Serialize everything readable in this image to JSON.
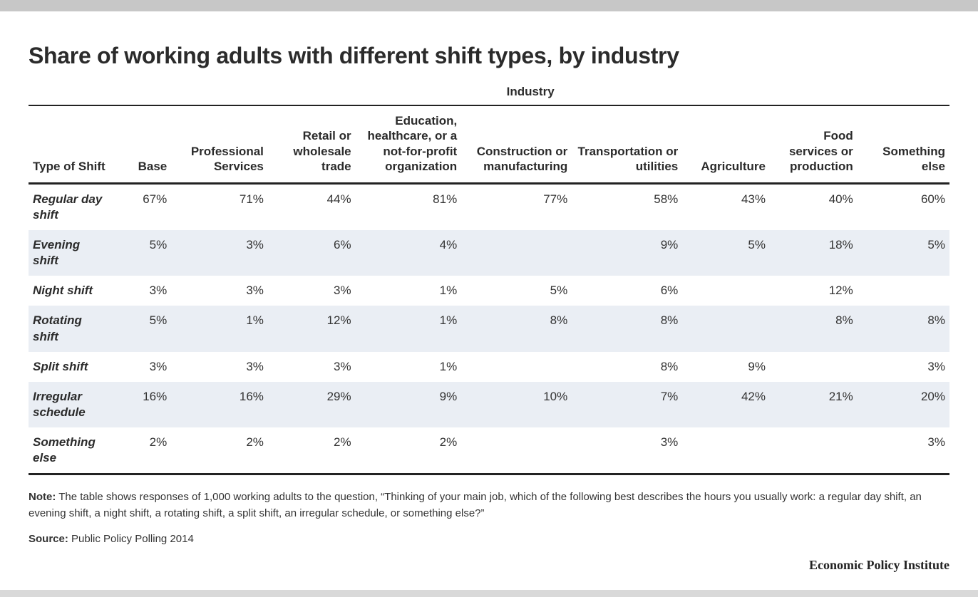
{
  "title": "Share of working adults with different shift types, by industry",
  "super_header": "Industry",
  "columns": [
    {
      "label": "Type of Shift",
      "width": "9%"
    },
    {
      "label": "Base",
      "width": "6.5%"
    },
    {
      "label": "Professional Services",
      "width": "10.5%"
    },
    {
      "label": "Retail or wholesale trade",
      "width": "9.5%"
    },
    {
      "label": "Education, healthcare, or a not-for-profit organization",
      "width": "11.5%"
    },
    {
      "label": "Construction or manufacturing",
      "width": "12%"
    },
    {
      "label": "Transportation or utilities",
      "width": "12%"
    },
    {
      "label": "Agriculture",
      "width": "9.5%"
    },
    {
      "label": "Food services or production",
      "width": "9.5%"
    },
    {
      "label": "Something else",
      "width": "10%"
    }
  ],
  "rows": [
    {
      "label": "Regular day shift",
      "cells": [
        "67%",
        "71%",
        "44%",
        "81%",
        "77%",
        "58%",
        "43%",
        "40%",
        "60%"
      ]
    },
    {
      "label": "Evening shift",
      "cells": [
        "5%",
        "3%",
        "6%",
        "4%",
        "",
        "9%",
        "5%",
        "18%",
        "5%"
      ]
    },
    {
      "label": "Night shift",
      "cells": [
        "3%",
        "3%",
        "3%",
        "1%",
        "5%",
        "6%",
        "",
        "12%",
        ""
      ]
    },
    {
      "label": "Rotating shift",
      "cells": [
        "5%",
        "1%",
        "12%",
        "1%",
        "8%",
        "8%",
        "",
        "8%",
        "8%"
      ]
    },
    {
      "label": "Split shift",
      "cells": [
        "3%",
        "3%",
        "3%",
        "1%",
        "",
        "8%",
        "9%",
        "",
        "3%"
      ]
    },
    {
      "label": "Irregular schedule",
      "cells": [
        "16%",
        "16%",
        "29%",
        "9%",
        "10%",
        "7%",
        "42%",
        "21%",
        "20%"
      ]
    },
    {
      "label": "Something else",
      "cells": [
        "2%",
        "2%",
        "2%",
        "2%",
        "",
        "3%",
        "",
        "",
        "3%"
      ]
    }
  ],
  "note_label": "Note:",
  "note_text": " The table shows responses of 1,000 working adults to the question, “Thinking of your main job, which of the following best describes the hours you usually work: a regular day shift, an evening shift, a night shift, a rotating shift, a split shift, an irregular schedule, or something else?”",
  "source_label": "Source:",
  "source_text": " Public Policy Polling 2014",
  "attribution": "Economic Policy Institute",
  "styling": {
    "type": "table",
    "stripe_color": "#eaeef4",
    "background_color": "#ffffff",
    "text_color": "#333333",
    "heading_color": "#2b2b2b",
    "rule_color": "#222222",
    "top_bar_color": "#c7c7c7",
    "bottom_bar_color": "#d9d9d9",
    "title_fontsize": 32,
    "header_fontsize": 17,
    "cell_fontsize": 17,
    "footnote_fontsize": 15,
    "attribution_font": "Georgia serif"
  }
}
